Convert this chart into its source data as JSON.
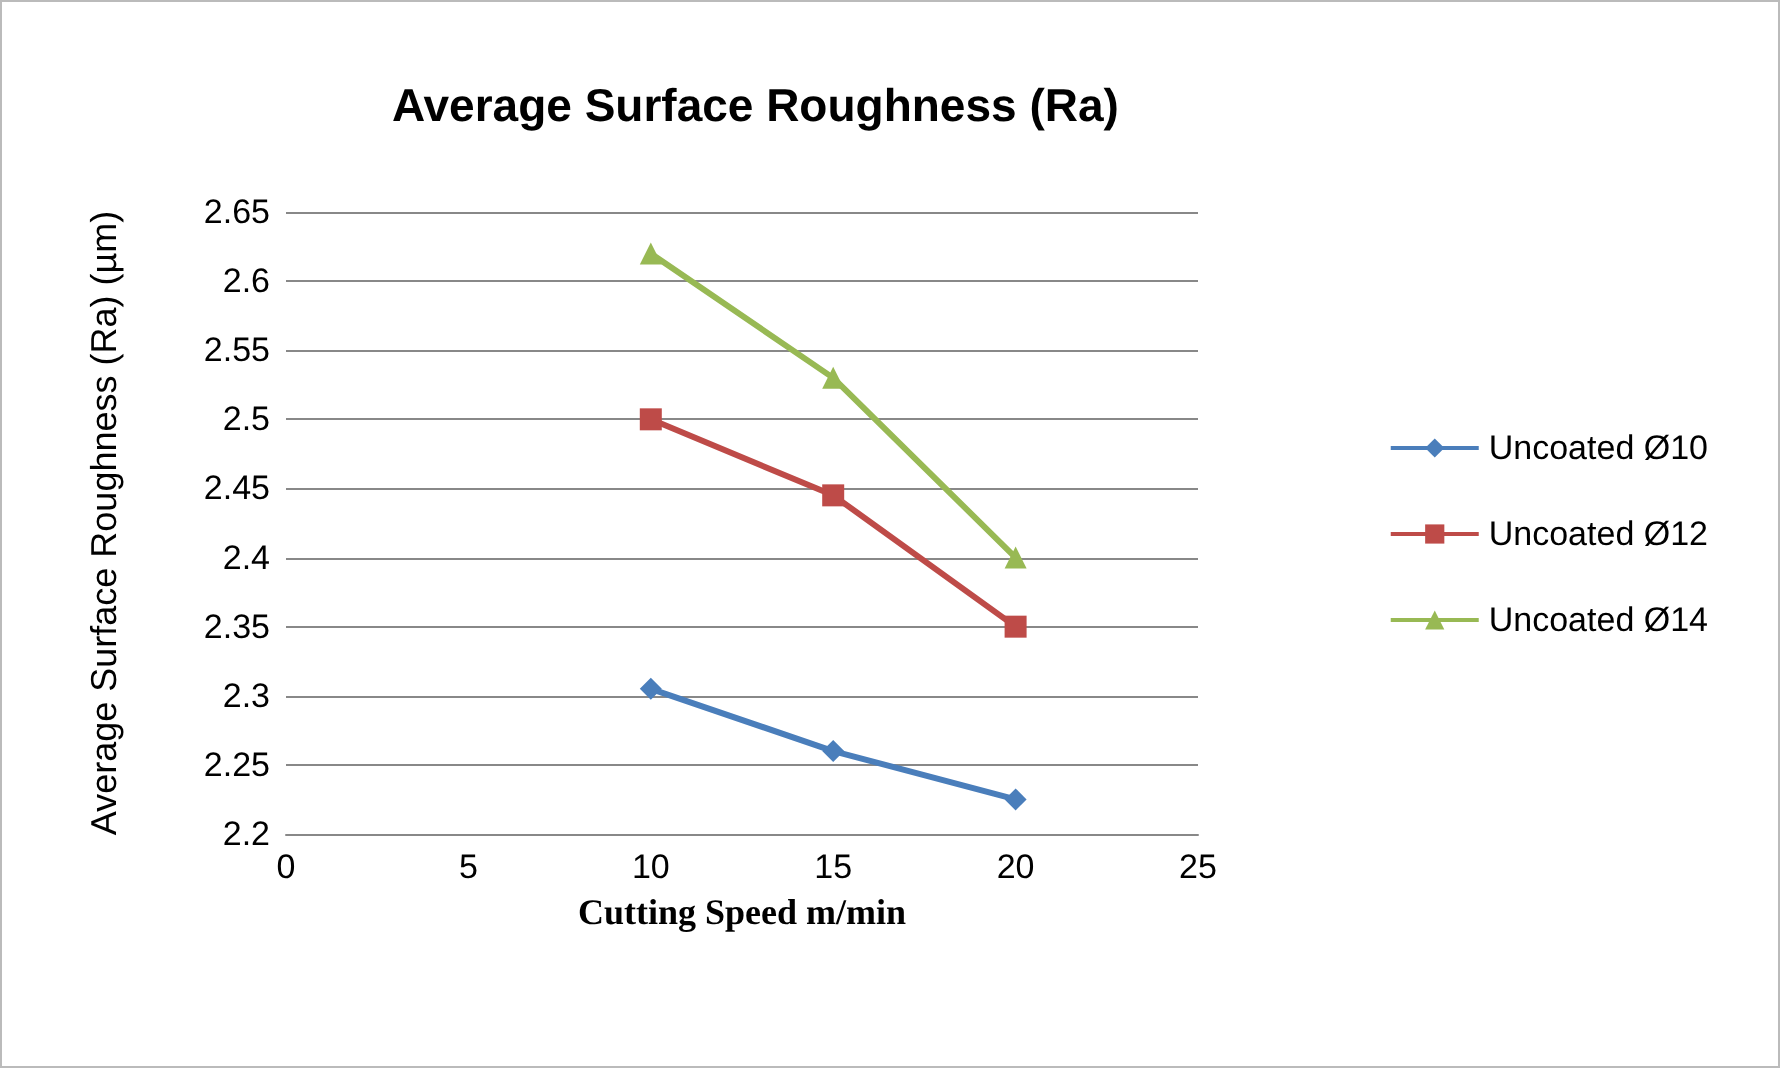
{
  "chart_data": {
    "type": "line",
    "title": "Average Surface Roughness (Ra)",
    "xlabel": "Cutting Speed m/min",
    "ylabel": "Average Surface Roughness (Ra) (µm)",
    "x": [
      10,
      15,
      20
    ],
    "series": [
      {
        "name": "Uncoated Ø10",
        "color": "#4a7ebb",
        "marker": "diamond",
        "values": [
          2.305,
          2.26,
          2.225
        ]
      },
      {
        "name": "Uncoated Ø12",
        "color": "#be4b48",
        "marker": "square",
        "values": [
          2.5,
          2.445,
          2.35
        ]
      },
      {
        "name": "Uncoated Ø14",
        "color": "#98b954",
        "marker": "triangle",
        "values": [
          2.62,
          2.53,
          2.4
        ]
      }
    ],
    "xlim": [
      0,
      25
    ],
    "xticks": [
      0,
      5,
      10,
      15,
      20,
      25
    ],
    "ylim": [
      2.2,
      2.65
    ],
    "yticks": [
      2.2,
      2.25,
      2.3,
      2.35,
      2.4,
      2.45,
      2.5,
      2.55,
      2.6,
      2.65
    ],
    "grid": "y",
    "legend": "right"
  }
}
